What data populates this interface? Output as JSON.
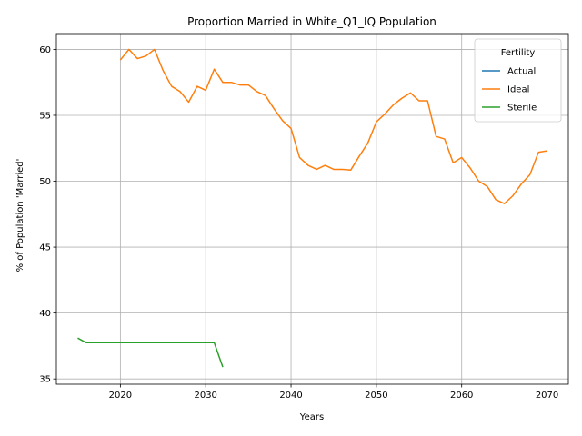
{
  "chart_data": {
    "type": "line",
    "title": "Proportion Married in White_Q1_IQ Population",
    "xlabel": "Years",
    "ylabel": "% of Population 'Married'",
    "xlim": [
      2012.5,
      2072.5
    ],
    "ylim": [
      34.6,
      61.2
    ],
    "xticks": [
      2020,
      2030,
      2040,
      2050,
      2060,
      2070
    ],
    "yticks": [
      35,
      40,
      45,
      50,
      55,
      60
    ],
    "grid": true,
    "legend": {
      "title": "Fertility",
      "placement": "top-right"
    },
    "series": [
      {
        "name": "Actual",
        "color": "#1f77b4",
        "x": [],
        "y": []
      },
      {
        "name": "Ideal",
        "color": "#ff7f0e",
        "x": [
          2020,
          2021,
          2022,
          2023,
          2024,
          2025,
          2026,
          2027,
          2028,
          2029,
          2030,
          2031,
          2032,
          2033,
          2034,
          2035,
          2036,
          2037,
          2038,
          2039,
          2040,
          2041,
          2042,
          2043,
          2044,
          2045,
          2046,
          2047,
          2048,
          2049,
          2050,
          2051,
          2052,
          2053,
          2054,
          2055,
          2056,
          2057,
          2058,
          2059,
          2060,
          2061,
          2062,
          2063,
          2064,
          2065,
          2066,
          2067,
          2068,
          2069,
          2070
        ],
        "y": [
          59.2,
          60.0,
          59.3,
          59.5,
          60.0,
          58.4,
          57.2,
          56.8,
          56.0,
          57.2,
          56.9,
          58.5,
          57.5,
          57.5,
          57.3,
          57.3,
          56.8,
          56.5,
          55.5,
          54.6,
          54.0,
          51.8,
          51.2,
          50.9,
          51.2,
          50.9,
          50.9,
          50.85,
          51.9,
          52.9,
          54.5,
          55.1,
          55.8,
          56.3,
          56.7,
          56.1,
          56.1,
          53.4,
          53.2,
          51.4,
          51.8,
          51.0,
          50.0,
          49.6,
          48.6,
          48.3,
          48.9,
          49.8,
          50.5,
          52.2,
          52.3
        ]
      },
      {
        "name": "Sterile",
        "color": "#2ca02c",
        "x": [
          2015,
          2016,
          2017,
          2018,
          2019,
          2020,
          2021,
          2022,
          2023,
          2024,
          2025,
          2026,
          2027,
          2028,
          2029,
          2030,
          2031,
          2032
        ],
        "y": [
          38.1,
          37.75,
          37.75,
          37.75,
          37.75,
          37.75,
          37.75,
          37.75,
          37.75,
          37.75,
          37.75,
          37.75,
          37.75,
          37.75,
          37.75,
          37.75,
          37.75,
          35.9
        ]
      }
    ]
  }
}
